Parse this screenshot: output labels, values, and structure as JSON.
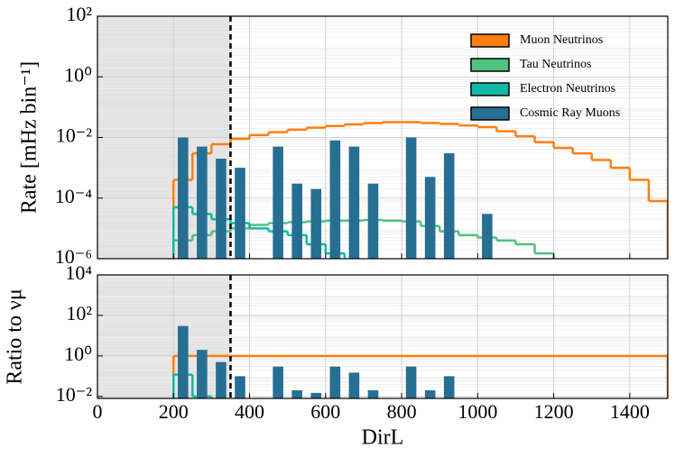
{
  "chart_data": [
    {
      "type": "histogram",
      "ylabel": "Rate [mHz bin⁻¹]",
      "log_y": true,
      "grid": true,
      "legend": "upper right",
      "shaded_xrange": [
        0,
        350
      ],
      "threshold": 350,
      "bins": [
        200,
        250,
        300,
        350,
        400,
        450,
        500,
        550,
        600,
        650,
        700,
        750,
        800,
        850,
        900,
        950,
        1000,
        1050,
        1100,
        1150,
        1200,
        1250,
        1300,
        1350,
        1400,
        1450,
        1500
      ],
      "xlim": [
        0,
        1500
      ],
      "xticks": [
        0,
        200,
        400,
        600,
        800,
        1000,
        1200,
        1400
      ],
      "ylim": [
        1e-06,
        100
      ],
      "yticks": [
        {
          "value": 100,
          "label": "10²"
        },
        {
          "value": 1,
          "label": "10⁰"
        },
        {
          "value": 0.01,
          "label": "10⁻²"
        },
        {
          "value": 0.0001,
          "label": "10⁻⁴"
        },
        {
          "value": 1e-06,
          "label": "10⁻⁶"
        }
      ],
      "series": [
        {
          "name": "Muon Neutrinos",
          "color": "#ff7f0e",
          "style": "step",
          "values": [
            0.0004,
            0.003,
            0.006,
            0.009,
            0.012,
            0.015,
            0.018,
            0.021,
            0.024,
            0.027,
            0.03,
            0.032,
            0.032,
            0.03,
            0.028,
            0.025,
            0.022,
            0.016,
            0.011,
            0.007,
            0.0045,
            0.003,
            0.0018,
            0.001,
            0.0004,
            8e-05
          ]
        },
        {
          "name": "Tau Neutrinos",
          "color": "#4fc27f",
          "style": "step",
          "values": [
            4e-06,
            6e-06,
            8e-06,
            1e-05,
            1.3e-05,
            1.5e-05,
            1.6e-05,
            1.7e-05,
            1.8e-05,
            1.8e-05,
            1.9e-05,
            1.8e-05,
            1.7e-05,
            1.2e-05,
            8e-06,
            6e-06,
            5e-06,
            4e-06,
            3e-06,
            1.5e-06,
            null,
            null,
            null,
            null,
            null,
            null
          ]
        },
        {
          "name": "Electron Neutrinos",
          "color": "#10b9a6",
          "style": "step",
          "values": [
            5e-05,
            3e-05,
            2e-05,
            1.5e-05,
            1e-05,
            8e-06,
            6e-06,
            3e-06,
            1.5e-06,
            null,
            null,
            null,
            null,
            null,
            null,
            null,
            null,
            null,
            null,
            null,
            null,
            null,
            null,
            null,
            null,
            null
          ]
        },
        {
          "name": "Cosmic Ray Muons",
          "color": "#276f92",
          "style": "bar",
          "values": [
            0.01,
            0.005,
            0.002,
            0.001,
            null,
            0.005,
            0.0003,
            0.0002,
            0.008,
            0.005,
            0.0003,
            null,
            0.01,
            0.0005,
            0.003,
            null,
            3e-05,
            null,
            null,
            null,
            null,
            null,
            null,
            null,
            null,
            null
          ]
        }
      ]
    },
    {
      "type": "histogram",
      "ylabel": "Ratio to νμ",
      "xlabel": "DirL",
      "log_y": true,
      "grid": true,
      "shaded_xrange": [
        0,
        350
      ],
      "threshold": 350,
      "bins": [
        200,
        250,
        300,
        350,
        400,
        450,
        500,
        550,
        600,
        650,
        700,
        750,
        800,
        850,
        900,
        950,
        1000,
        1050,
        1100,
        1150,
        1200,
        1250,
        1300,
        1350,
        1400,
        1450,
        1500
      ],
      "xlim": [
        0,
        1500
      ],
      "xticks": [
        0,
        200,
        400,
        600,
        800,
        1000,
        1200,
        1400
      ],
      "ylim": [
        0.008,
        10000
      ],
      "yticks": [
        {
          "value": 10000,
          "label": "10⁴"
        },
        {
          "value": 100,
          "label": "10²"
        },
        {
          "value": 1,
          "label": "10⁰"
        },
        {
          "value": 0.01,
          "label": "10⁻²"
        }
      ],
      "series": [
        {
          "color": "#ff7f0e",
          "style": "step",
          "values": [
            1,
            1,
            1,
            1,
            1,
            1,
            1,
            1,
            1,
            1,
            1,
            1,
            1,
            1,
            1,
            1,
            1,
            1,
            1,
            1,
            1,
            1,
            1,
            1,
            1,
            1
          ]
        },
        {
          "color": "#10b9a6",
          "style": "step",
          "values": [
            0.12,
            0.01,
            null,
            null,
            null,
            null,
            null,
            null,
            null,
            null,
            null,
            null,
            null,
            null,
            null,
            null,
            null,
            null,
            null,
            null,
            null,
            null,
            null,
            null,
            null,
            null
          ]
        },
        {
          "color": "#276f92",
          "style": "bar",
          "values": [
            30,
            2,
            0.5,
            0.1,
            null,
            0.3,
            0.02,
            0.015,
            0.3,
            0.15,
            0.02,
            null,
            0.3,
            0.02,
            0.1,
            null,
            null,
            null,
            null,
            null,
            null,
            null,
            null,
            null,
            null,
            null
          ]
        }
      ]
    }
  ]
}
